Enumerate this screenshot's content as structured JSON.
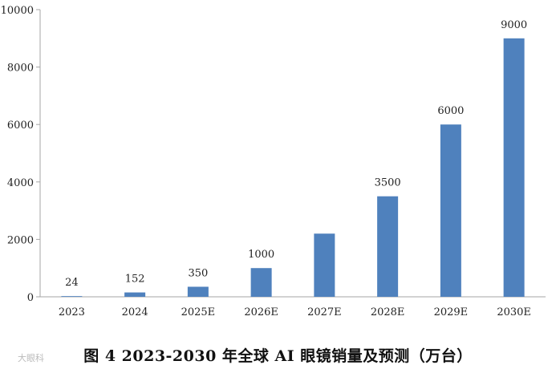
{
  "caption": "图 4 2023-2030 年全球 AI 眼镜销量及预测（万台）",
  "watermark": "大眼科",
  "colors": {
    "bar": "#4f81bd",
    "axis": "#a6a6a6",
    "text": "#222222"
  },
  "chart_data": {
    "type": "bar",
    "categories": [
      "2023",
      "2024",
      "2025E",
      "2026E",
      "2027E",
      "2028E",
      "2029E",
      "2030E"
    ],
    "values": [
      24,
      152,
      350,
      1000,
      2200,
      3500,
      6000,
      9000
    ],
    "data_labels": [
      "24",
      "152",
      "350",
      "1000",
      "",
      "3500",
      "6000",
      "9000"
    ],
    "ylim": [
      0,
      10000
    ],
    "yticks": [
      0,
      2000,
      4000,
      6000,
      8000,
      10000
    ],
    "grid": false,
    "legend": "none"
  }
}
